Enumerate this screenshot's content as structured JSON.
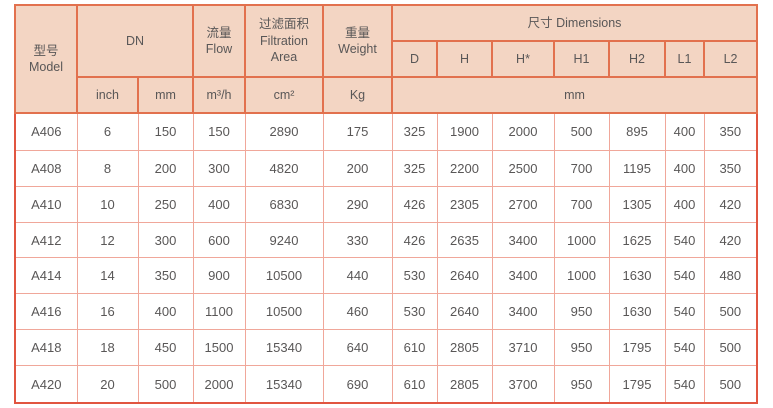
{
  "colors": {
    "page_background": "#ffffff",
    "header_background": "#f3d5c3",
    "outer_border": "#e15540",
    "header_border": "#e2714e",
    "data_border": "#f0a79a",
    "text": "#595757"
  },
  "header": {
    "model_zh": "型号",
    "model_en": "Model",
    "dn": "DN",
    "flow_zh": "流量",
    "flow_en": "Flow",
    "filtration_zh": "过滤面积",
    "filtration_en_line1": "Filtration",
    "filtration_en_line2": "Area",
    "weight_zh": "重量",
    "weight_en": "Weight",
    "dimensions": "尺寸 Dimensions",
    "dim_columns": [
      "D",
      "H",
      "H*",
      "H1",
      "H2",
      "L1",
      "L2"
    ],
    "unit_inch": "inch",
    "unit_mm": "mm",
    "unit_flow": "m³/h",
    "unit_area": "cm²",
    "unit_weight": "Kg",
    "unit_dims": "mm"
  },
  "columns_keys": [
    "model",
    "dn-inch",
    "dn-mm",
    "flow",
    "filtration-area",
    "weight",
    "dim-d",
    "dim-h",
    "dim-h-star",
    "dim-h1",
    "dim-h2",
    "dim-l1",
    "dim-l2"
  ],
  "rows": [
    [
      "A406",
      "6",
      "150",
      "150",
      "2890",
      "175",
      "325",
      "1900",
      "2000",
      "500",
      "895",
      "400",
      "350"
    ],
    [
      "A408",
      "8",
      "200",
      "300",
      "4820",
      "200",
      "325",
      "2200",
      "2500",
      "700",
      "1195",
      "400",
      "350"
    ],
    [
      "A410",
      "10",
      "250",
      "400",
      "6830",
      "290",
      "426",
      "2305",
      "2700",
      "700",
      "1305",
      "400",
      "420"
    ],
    [
      "A412",
      "12",
      "300",
      "600",
      "9240",
      "330",
      "426",
      "2635",
      "3400",
      "1000",
      "1625",
      "540",
      "420"
    ],
    [
      "A414",
      "14",
      "350",
      "900",
      "10500",
      "440",
      "530",
      "2640",
      "3400",
      "1000",
      "1630",
      "540",
      "480"
    ],
    [
      "A416",
      "16",
      "400",
      "1100",
      "10500",
      "460",
      "530",
      "2640",
      "3400",
      "950",
      "1630",
      "540",
      "500"
    ],
    [
      "A418",
      "18",
      "450",
      "1500",
      "15340",
      "640",
      "610",
      "2805",
      "3710",
      "950",
      "1795",
      "540",
      "500"
    ],
    [
      "A420",
      "20",
      "500",
      "2000",
      "15340",
      "690",
      "610",
      "2805",
      "3700",
      "950",
      "1795",
      "540",
      "500"
    ]
  ]
}
